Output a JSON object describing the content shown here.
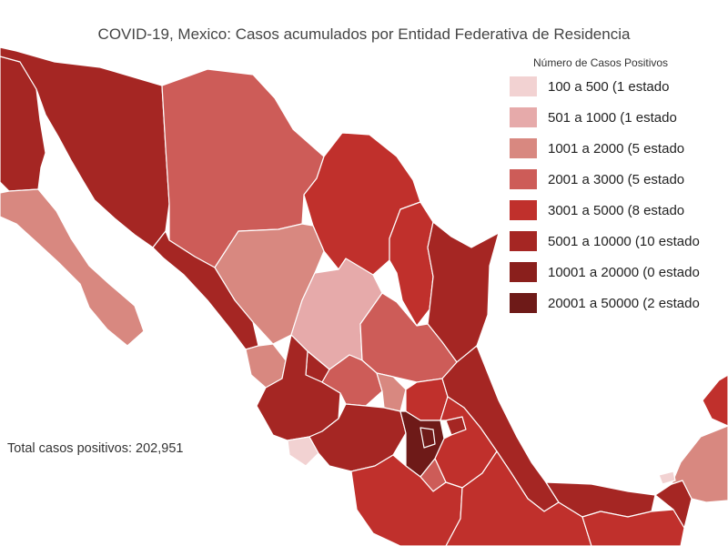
{
  "title": "COVID-19, Mexico: Casos acumulados por Entidad Federativa de Residencia",
  "legend": {
    "title": "Número de Casos Positivos",
    "items": [
      {
        "label": "100 a 500 (1 estado",
        "color": "#f2d2d2"
      },
      {
        "label": "501 a 1000 (1 estado",
        "color": "#e6aaaa"
      },
      {
        "label": "1001 a 2000 (5 estado",
        "color": "#d88880"
      },
      {
        "label": "2001 a 3000 (5 estado",
        "color": "#cd5c58"
      },
      {
        "label": "3001 a 5000 (8 estado",
        "color": "#c0302c"
      },
      {
        "label": "5001 a 10000 (10 estado",
        "color": "#a52623"
      },
      {
        "label": "10001 a 20000 (0 estado",
        "color": "#8a1f1c"
      },
      {
        "label": "20001 a 50000 (2 estado",
        "color": "#6e1a18"
      }
    ]
  },
  "total": "Total casos positivos: 202,951"
}
